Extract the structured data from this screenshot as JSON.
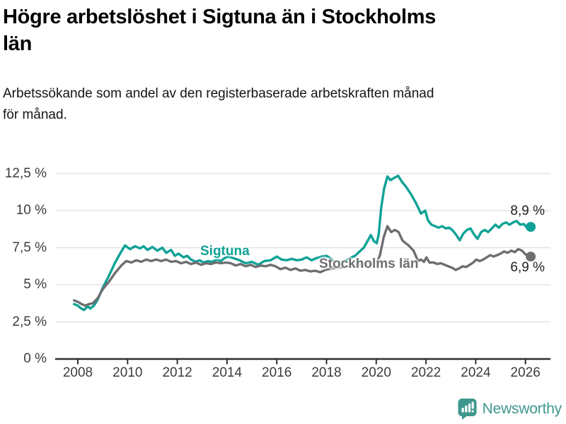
{
  "header": {
    "title": "Högre arbetslöshet i Sigtuna än i Stockholms\nlän",
    "subtitle": "Arbetssökande som andel av den registerbaserade arbetskraften månad\nför månad."
  },
  "annotations": {
    "sigtuna_label": "Sigtuna",
    "stockholm_label": "Stockholms län",
    "sigtuna_end_value": "8,9 %",
    "stockholm_end_value": "6,9 %"
  },
  "footer": {
    "brand": "Newsworthy",
    "logo_icon": "bar-chart-speech-bubble-icon"
  },
  "colors": {
    "accent": "#10a296",
    "secondary": "#6e6e70",
    "brand": "#3e978d",
    "grid": "#e3e3e3",
    "axis": "#2f2f2f",
    "tick_text": "#3c3c3c"
  },
  "chart_data": {
    "type": "line",
    "title": "Högre arbetslöshet i Sigtuna än i Stockholms län",
    "subtitle": "Arbetssökande som andel av den registerbaserade arbetskraften månad för månad.",
    "xlabel": "",
    "ylabel": "",
    "grid": true,
    "legend_position": "inline-labels",
    "xlim": [
      2007.85,
      2026.9
    ],
    "ylim": [
      0,
      13.2
    ],
    "x_ticks": [
      {
        "v": 2008,
        "label": "2008"
      },
      {
        "v": 2010,
        "label": "2010"
      },
      {
        "v": 2012,
        "label": "2012"
      },
      {
        "v": 2014,
        "label": "2014"
      },
      {
        "v": 2016,
        "label": "2016"
      },
      {
        "v": 2018,
        "label": "2018"
      },
      {
        "v": 2020,
        "label": "2020"
      },
      {
        "v": 2022,
        "label": "2022"
      },
      {
        "v": 2024,
        "label": "2024"
      },
      {
        "v": 2026,
        "label": "2026"
      }
    ],
    "y_ticks": [
      {
        "v": 0,
        "label": "0 %"
      },
      {
        "v": 2.5,
        "label": "2,5 %"
      },
      {
        "v": 5,
        "label": "5 %"
      },
      {
        "v": 7.5,
        "label": "7,5 %"
      },
      {
        "v": 10,
        "label": "10 %"
      },
      {
        "v": 12.5,
        "label": "12,5 %"
      }
    ],
    "series": [
      {
        "name": "Sigtuna",
        "color": "#10a296",
        "end_label": "8,9 %",
        "end_value": 8.9,
        "points": [
          [
            2007.85,
            3.7
          ],
          [
            2008.0,
            3.6
          ],
          [
            2008.1,
            3.45
          ],
          [
            2008.25,
            3.3
          ],
          [
            2008.4,
            3.55
          ],
          [
            2008.5,
            3.4
          ],
          [
            2008.65,
            3.6
          ],
          [
            2008.8,
            4.0
          ],
          [
            2009.0,
            4.8
          ],
          [
            2009.25,
            5.6
          ],
          [
            2009.5,
            6.5
          ],
          [
            2009.75,
            7.25
          ],
          [
            2009.9,
            7.65
          ],
          [
            2010.1,
            7.4
          ],
          [
            2010.3,
            7.6
          ],
          [
            2010.5,
            7.45
          ],
          [
            2010.65,
            7.6
          ],
          [
            2010.8,
            7.35
          ],
          [
            2011.0,
            7.55
          ],
          [
            2011.2,
            7.3
          ],
          [
            2011.4,
            7.5
          ],
          [
            2011.55,
            7.15
          ],
          [
            2011.75,
            7.35
          ],
          [
            2011.9,
            6.95
          ],
          [
            2012.05,
            7.1
          ],
          [
            2012.25,
            6.85
          ],
          [
            2012.4,
            6.95
          ],
          [
            2012.55,
            6.7
          ],
          [
            2012.75,
            6.55
          ],
          [
            2012.9,
            6.65
          ],
          [
            2013.05,
            6.5
          ],
          [
            2013.25,
            6.6
          ],
          [
            2013.4,
            6.55
          ],
          [
            2013.6,
            6.7
          ],
          [
            2013.75,
            6.6
          ],
          [
            2013.9,
            6.8
          ],
          [
            2014.05,
            6.9
          ],
          [
            2014.25,
            6.8
          ],
          [
            2014.5,
            6.65
          ],
          [
            2014.75,
            6.45
          ],
          [
            2015.0,
            6.55
          ],
          [
            2015.25,
            6.35
          ],
          [
            2015.5,
            6.6
          ],
          [
            2015.75,
            6.65
          ],
          [
            2016.0,
            6.9
          ],
          [
            2016.2,
            6.7
          ],
          [
            2016.4,
            6.65
          ],
          [
            2016.6,
            6.75
          ],
          [
            2016.8,
            6.65
          ],
          [
            2017.0,
            6.7
          ],
          [
            2017.2,
            6.85
          ],
          [
            2017.4,
            6.65
          ],
          [
            2017.6,
            6.8
          ],
          [
            2017.8,
            6.9
          ],
          [
            2018.0,
            6.95
          ],
          [
            2018.15,
            6.8
          ],
          [
            2018.3,
            6.55
          ],
          [
            2018.45,
            6.5
          ],
          [
            2018.6,
            6.55
          ],
          [
            2018.8,
            6.65
          ],
          [
            2019.0,
            6.85
          ],
          [
            2019.15,
            6.95
          ],
          [
            2019.3,
            7.2
          ],
          [
            2019.5,
            7.5
          ],
          [
            2019.65,
            7.95
          ],
          [
            2019.78,
            8.35
          ],
          [
            2019.9,
            7.95
          ],
          [
            2020.02,
            7.8
          ],
          [
            2020.1,
            8.4
          ],
          [
            2020.2,
            10.2
          ],
          [
            2020.32,
            11.5
          ],
          [
            2020.45,
            12.3
          ],
          [
            2020.57,
            12.05
          ],
          [
            2020.72,
            12.2
          ],
          [
            2020.88,
            12.35
          ],
          [
            2021.05,
            11.9
          ],
          [
            2021.2,
            11.6
          ],
          [
            2021.4,
            11.1
          ],
          [
            2021.6,
            10.5
          ],
          [
            2021.8,
            9.8
          ],
          [
            2021.97,
            10.0
          ],
          [
            2022.08,
            9.35
          ],
          [
            2022.22,
            9.05
          ],
          [
            2022.37,
            8.95
          ],
          [
            2022.51,
            8.85
          ],
          [
            2022.65,
            8.95
          ],
          [
            2022.79,
            8.8
          ],
          [
            2022.94,
            8.85
          ],
          [
            2023.08,
            8.65
          ],
          [
            2023.22,
            8.35
          ],
          [
            2023.36,
            8.0
          ],
          [
            2023.5,
            8.45
          ],
          [
            2023.65,
            8.7
          ],
          [
            2023.79,
            8.8
          ],
          [
            2023.93,
            8.4
          ],
          [
            2024.07,
            8.1
          ],
          [
            2024.22,
            8.55
          ],
          [
            2024.36,
            8.7
          ],
          [
            2024.5,
            8.55
          ],
          [
            2024.65,
            8.8
          ],
          [
            2024.79,
            9.05
          ],
          [
            2024.93,
            8.85
          ],
          [
            2025.07,
            9.1
          ],
          [
            2025.22,
            9.2
          ],
          [
            2025.36,
            9.05
          ],
          [
            2025.5,
            9.2
          ],
          [
            2025.64,
            9.3
          ],
          [
            2025.79,
            9.05
          ],
          [
            2025.93,
            9.1
          ],
          [
            2026.06,
            8.85
          ],
          [
            2026.21,
            8.9
          ]
        ]
      },
      {
        "name": "Stockholms län",
        "color": "#6e6e70",
        "end_label": "6,9 %",
        "end_value": 6.9,
        "points": [
          [
            2007.85,
            3.95
          ],
          [
            2008.0,
            3.85
          ],
          [
            2008.15,
            3.7
          ],
          [
            2008.3,
            3.6
          ],
          [
            2008.45,
            3.7
          ],
          [
            2008.6,
            3.75
          ],
          [
            2008.8,
            4.1
          ],
          [
            2009.0,
            4.7
          ],
          [
            2009.25,
            5.2
          ],
          [
            2009.5,
            5.8
          ],
          [
            2009.75,
            6.3
          ],
          [
            2009.95,
            6.6
          ],
          [
            2010.15,
            6.5
          ],
          [
            2010.35,
            6.65
          ],
          [
            2010.55,
            6.55
          ],
          [
            2010.75,
            6.7
          ],
          [
            2010.95,
            6.6
          ],
          [
            2011.15,
            6.7
          ],
          [
            2011.35,
            6.6
          ],
          [
            2011.55,
            6.7
          ],
          [
            2011.75,
            6.55
          ],
          [
            2011.95,
            6.6
          ],
          [
            2012.15,
            6.45
          ],
          [
            2012.35,
            6.55
          ],
          [
            2012.55,
            6.4
          ],
          [
            2012.75,
            6.5
          ],
          [
            2012.95,
            6.35
          ],
          [
            2013.15,
            6.45
          ],
          [
            2013.35,
            6.4
          ],
          [
            2013.55,
            6.5
          ],
          [
            2013.75,
            6.45
          ],
          [
            2013.95,
            6.5
          ],
          [
            2014.15,
            6.45
          ],
          [
            2014.35,
            6.3
          ],
          [
            2014.55,
            6.4
          ],
          [
            2014.75,
            6.25
          ],
          [
            2014.95,
            6.35
          ],
          [
            2015.15,
            6.2
          ],
          [
            2015.35,
            6.3
          ],
          [
            2015.55,
            6.25
          ],
          [
            2015.75,
            6.35
          ],
          [
            2015.95,
            6.25
          ],
          [
            2016.15,
            6.05
          ],
          [
            2016.35,
            6.15
          ],
          [
            2016.55,
            6.0
          ],
          [
            2016.75,
            6.1
          ],
          [
            2016.95,
            5.95
          ],
          [
            2017.15,
            6.0
          ],
          [
            2017.35,
            5.9
          ],
          [
            2017.55,
            5.95
          ],
          [
            2017.75,
            5.85
          ],
          [
            2017.95,
            6.0
          ],
          [
            2018.2,
            6.1
          ],
          [
            2018.45,
            6.15
          ],
          [
            2018.7,
            6.2
          ],
          [
            2018.95,
            6.25
          ],
          [
            2019.2,
            6.3
          ],
          [
            2019.45,
            6.35
          ],
          [
            2019.7,
            6.4
          ],
          [
            2019.9,
            6.45
          ],
          [
            2020.05,
            6.6
          ],
          [
            2020.15,
            7.0
          ],
          [
            2020.3,
            8.2
          ],
          [
            2020.45,
            8.95
          ],
          [
            2020.6,
            8.55
          ],
          [
            2020.75,
            8.7
          ],
          [
            2020.9,
            8.55
          ],
          [
            2021.05,
            8.0
          ],
          [
            2021.15,
            7.85
          ],
          [
            2021.3,
            7.65
          ],
          [
            2021.5,
            7.3
          ],
          [
            2021.68,
            6.6
          ],
          [
            2021.8,
            6.7
          ],
          [
            2021.92,
            6.55
          ],
          [
            2022.02,
            6.85
          ],
          [
            2022.14,
            6.5
          ],
          [
            2022.31,
            6.5
          ],
          [
            2022.45,
            6.4
          ],
          [
            2022.6,
            6.45
          ],
          [
            2022.77,
            6.33
          ],
          [
            2022.91,
            6.24
          ],
          [
            2023.05,
            6.15
          ],
          [
            2023.19,
            6.0
          ],
          [
            2023.33,
            6.1
          ],
          [
            2023.47,
            6.25
          ],
          [
            2023.62,
            6.2
          ],
          [
            2023.76,
            6.35
          ],
          [
            2023.9,
            6.5
          ],
          [
            2024.02,
            6.7
          ],
          [
            2024.16,
            6.6
          ],
          [
            2024.3,
            6.7
          ],
          [
            2024.44,
            6.85
          ],
          [
            2024.59,
            7.0
          ],
          [
            2024.72,
            6.9
          ],
          [
            2024.86,
            7.0
          ],
          [
            2025.0,
            7.1
          ],
          [
            2025.14,
            7.25
          ],
          [
            2025.28,
            7.15
          ],
          [
            2025.43,
            7.3
          ],
          [
            2025.57,
            7.2
          ],
          [
            2025.71,
            7.4
          ],
          [
            2025.86,
            7.3
          ],
          [
            2026.0,
            7.05
          ],
          [
            2026.1,
            6.95
          ],
          [
            2026.21,
            6.9
          ]
        ]
      }
    ]
  }
}
